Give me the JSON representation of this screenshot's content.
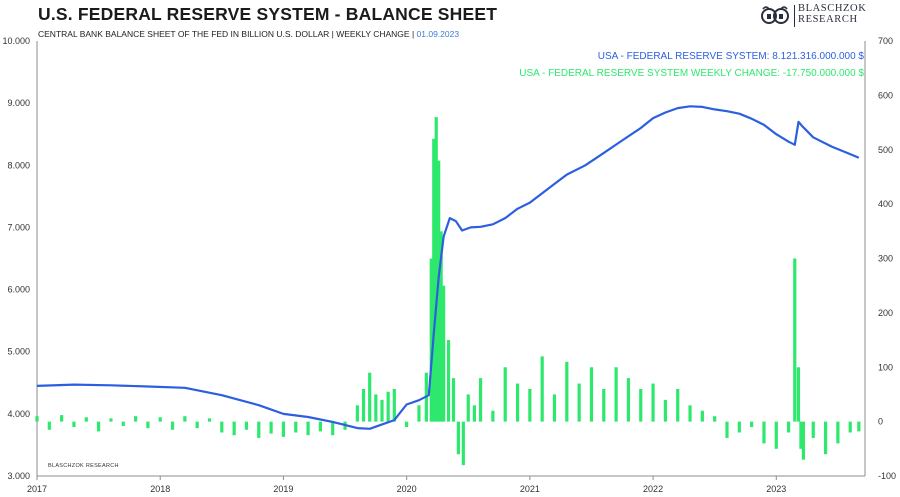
{
  "header": {
    "title": "U.S. FEDERAL RESERVE SYSTEM - BALANCE SHEET",
    "subtitle": "CENTRAL BANK BALANCE SHEET OF THE FED IN BILLION U.S. DOLLAR | WEEKLY CHANGE |",
    "date": "01.09.2023"
  },
  "logo": {
    "line1": "BLASCHZOK",
    "line2": "RESEARCH",
    "icon": "bull-bear-icon"
  },
  "watermark": "BLASCHZOK RESEARCH",
  "colors": {
    "balance": "#2c5fe0",
    "change": "#2ee86e",
    "axis": "#8c8c8c"
  },
  "chart_data": {
    "type": "line",
    "title": "U.S. FEDERAL RESERVE SYSTEM - BALANCE SHEET",
    "x_ticks": [
      "2017",
      "2018",
      "2019",
      "2020",
      "2021",
      "2022",
      "2023"
    ],
    "y_left_ticks": [
      "10.000",
      "9.000",
      "8.000",
      "7.000",
      "6.000",
      "5.000",
      "4.000",
      "3.000"
    ],
    "y_left_range": [
      3000,
      10000
    ],
    "y_right_ticks": [
      "700",
      "600",
      "500",
      "400",
      "300",
      "200",
      "100",
      "0",
      "-100"
    ],
    "y_right_range": [
      -100,
      700
    ],
    "legend_position": "top-right",
    "series": [
      {
        "name": "USA - FEDERAL RESERVE SYSTEM: 8.121.316.000.000 $",
        "axis": "left",
        "kind": "line",
        "x": [
          2017.0,
          2017.3,
          2017.6,
          2017.9,
          2018.2,
          2018.5,
          2018.8,
          2019.0,
          2019.2,
          2019.4,
          2019.6,
          2019.7,
          2019.9,
          2020.0,
          2020.1,
          2020.18,
          2020.22,
          2020.26,
          2020.3,
          2020.35,
          2020.4,
          2020.45,
          2020.52,
          2020.6,
          2020.7,
          2020.8,
          2020.9,
          2021.0,
          2021.1,
          2021.2,
          2021.3,
          2021.45,
          2021.6,
          2021.75,
          2021.9,
          2022.0,
          2022.1,
          2022.2,
          2022.3,
          2022.4,
          2022.5,
          2022.6,
          2022.7,
          2022.8,
          2022.9,
          2023.0,
          2023.1,
          2023.15,
          2023.18,
          2023.21,
          2023.3,
          2023.45,
          2023.6,
          2023.67
        ],
        "y": [
          4450,
          4470,
          4460,
          4440,
          4420,
          4300,
          4140,
          4000,
          3950,
          3870,
          3770,
          3760,
          3900,
          4150,
          4220,
          4300,
          5300,
          6200,
          6850,
          7150,
          7100,
          6950,
          7000,
          7010,
          7050,
          7150,
          7300,
          7400,
          7550,
          7700,
          7850,
          8000,
          8200,
          8400,
          8600,
          8760,
          8850,
          8920,
          8950,
          8940,
          8900,
          8870,
          8830,
          8750,
          8650,
          8500,
          8380,
          8330,
          8700,
          8630,
          8450,
          8300,
          8180,
          8120
        ]
      },
      {
        "name": "USA - FEDERAL RESERVE SYSTEM WEEKLY CHANGE: -17.750.000.000 $",
        "axis": "right",
        "kind": "bar",
        "x": [
          2017.0,
          2017.1,
          2017.2,
          2017.3,
          2017.4,
          2017.5,
          2017.6,
          2017.7,
          2017.8,
          2017.9,
          2018.0,
          2018.1,
          2018.2,
          2018.3,
          2018.4,
          2018.5,
          2018.6,
          2018.7,
          2018.8,
          2018.9,
          2019.0,
          2019.1,
          2019.2,
          2019.3,
          2019.4,
          2019.5,
          2019.6,
          2019.65,
          2019.7,
          2019.75,
          2019.8,
          2019.85,
          2019.9,
          2020.0,
          2020.1,
          2020.16,
          2020.2,
          2020.22,
          2020.24,
          2020.26,
          2020.28,
          2020.3,
          2020.34,
          2020.38,
          2020.42,
          2020.46,
          2020.5,
          2020.55,
          2020.6,
          2020.7,
          2020.8,
          2020.9,
          2021.0,
          2021.1,
          2021.2,
          2021.3,
          2021.4,
          2021.5,
          2021.6,
          2021.7,
          2021.8,
          2021.9,
          2022.0,
          2022.1,
          2022.2,
          2022.3,
          2022.4,
          2022.5,
          2022.6,
          2022.7,
          2022.8,
          2022.9,
          2023.0,
          2023.1,
          2023.15,
          2023.18,
          2023.2,
          2023.22,
          2023.3,
          2023.4,
          2023.5,
          2023.6,
          2023.67
        ],
        "y": [
          10,
          -15,
          12,
          -10,
          8,
          -18,
          6,
          -8,
          10,
          -12,
          8,
          -15,
          10,
          -12,
          6,
          -20,
          -25,
          -15,
          -30,
          -22,
          -28,
          -20,
          -25,
          -18,
          -25,
          -15,
          30,
          60,
          90,
          50,
          40,
          55,
          60,
          -10,
          30,
          90,
          300,
          520,
          560,
          480,
          350,
          250,
          150,
          80,
          -60,
          -80,
          50,
          30,
          80,
          20,
          100,
          70,
          60,
          120,
          50,
          110,
          70,
          100,
          60,
          100,
          80,
          60,
          70,
          40,
          60,
          30,
          20,
          10,
          -30,
          -20,
          -10,
          -40,
          -50,
          -20,
          300,
          100,
          -50,
          -70,
          -30,
          -60,
          -40,
          -20,
          -18
        ]
      }
    ]
  }
}
